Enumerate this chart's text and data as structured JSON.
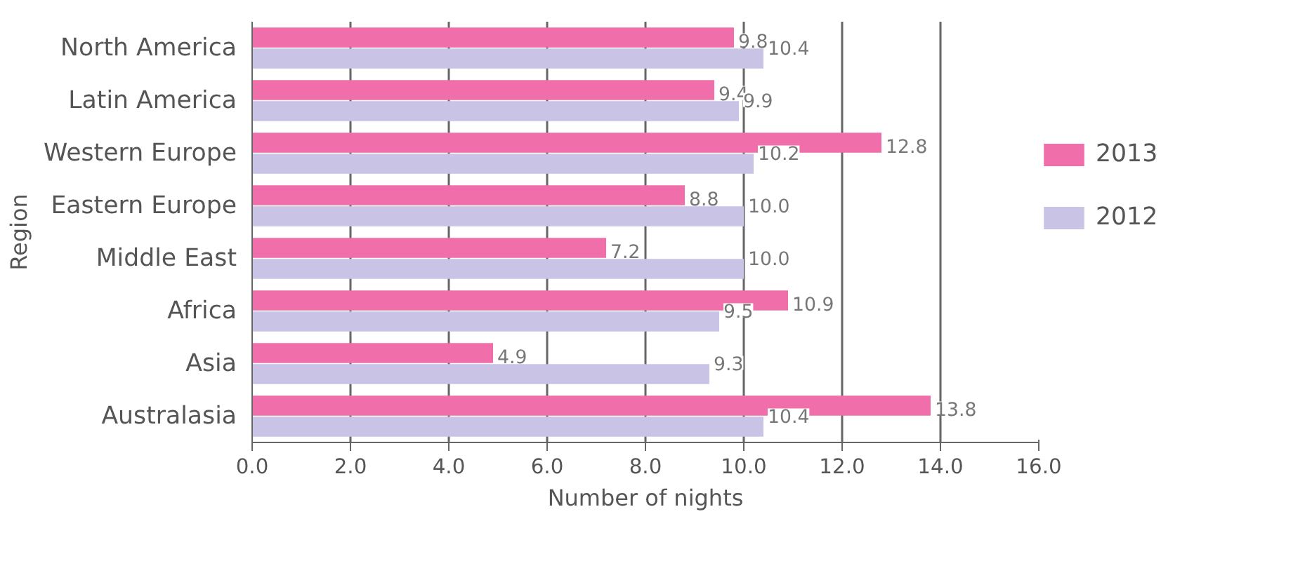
{
  "chart_data": {
    "type": "bar",
    "orientation": "horizontal",
    "xlabel": "Number of nights",
    "ylabel": "Region",
    "categories": [
      "North America",
      "Latin America",
      "Western Europe",
      "Eastern Europe",
      "Middle East",
      "Africa",
      "Asia",
      "Australasia"
    ],
    "series": [
      {
        "name": "2013",
        "color": "#f06ea9",
        "values": [
          9.8,
          9.4,
          12.8,
          8.8,
          7.2,
          10.9,
          4.9,
          13.8
        ],
        "value_labels": [
          "9.8",
          "9.4",
          "12.8",
          "8.8",
          "7.2",
          "10.9",
          "4.9",
          "13.8"
        ]
      },
      {
        "name": "2012",
        "color": "#c9c3e6",
        "values": [
          10.4,
          9.9,
          10.2,
          10.0,
          10.0,
          9.5,
          9.3,
          10.4
        ],
        "value_labels": [
          "10.4",
          "9.9",
          "10.2",
          "10.0",
          "10.0",
          "9.5",
          "9.3",
          "10.4"
        ]
      }
    ],
    "xlim": [
      0,
      16
    ],
    "xticks": [
      {
        "value": 0,
        "label": "0.0"
      },
      {
        "value": 2,
        "label": "2.0"
      },
      {
        "value": 4,
        "label": "4.0"
      },
      {
        "value": 6,
        "label": "6.0"
      },
      {
        "value": 8,
        "label": "8.0"
      },
      {
        "value": 10,
        "label": "10.0"
      },
      {
        "value": 12,
        "label": "12.0"
      },
      {
        "value": 14,
        "label": "14.0"
      },
      {
        "value": 16,
        "label": "16.0"
      }
    ],
    "grid": "x",
    "legend": "right"
  }
}
